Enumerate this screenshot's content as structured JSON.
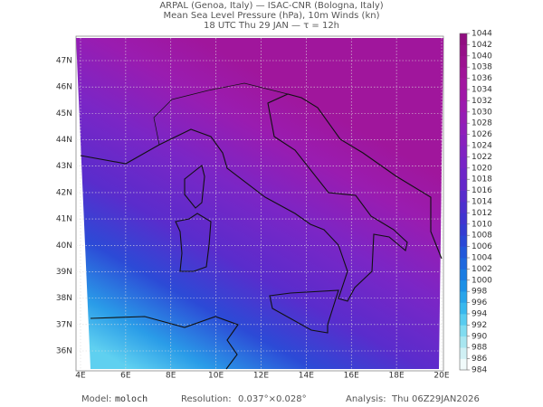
{
  "header": {
    "line1": "ARPAL (Genoa, Italy)  —  ISAC-CNR (Bologna, Italy)",
    "line2": "Mean Sea Level Pressure (hPa), 10m Winds (kn)",
    "line3": "18 UTC Thu 29 JAN  —  τ = 12h"
  },
  "map": {
    "lon_labels": [
      "4E",
      "6E",
      "8E",
      "10E",
      "12E",
      "14E",
      "16E",
      "18E",
      "20E"
    ],
    "lat_labels": [
      "36N",
      "37N",
      "38N",
      "39N",
      "40N",
      "41N",
      "42N",
      "43N",
      "44N",
      "45N",
      "46N",
      "47N"
    ]
  },
  "colorbar": {
    "levels": [
      984,
      986,
      988,
      990,
      992,
      994,
      996,
      998,
      1000,
      1002,
      1004,
      1006,
      1008,
      1010,
      1012,
      1014,
      1016,
      1018,
      1020,
      1022,
      1024,
      1026,
      1028,
      1030,
      1032,
      1034,
      1036,
      1038,
      1040,
      1042,
      1044
    ],
    "colors": [
      "#f0fafa",
      "#d0f0f4",
      "#a8e6f0",
      "#80dcf0",
      "#58ccf0",
      "#38b8ee",
      "#28a4ea",
      "#1c90e6",
      "#1a7ce2",
      "#1e68de",
      "#2258da",
      "#2a48d6",
      "#343cd2",
      "#4034d0",
      "#4c30ce",
      "#582ccc",
      "#6428ca",
      "#6e26c8",
      "#7824c6",
      "#8022c2",
      "#8820be",
      "#901eba",
      "#961cb4",
      "#9c1aae",
      "#a018a8",
      "#a216a0",
      "#a01498",
      "#9c1290",
      "#961088",
      "#900e80"
    ]
  },
  "footer": {
    "model_label": "Model:",
    "model": "moloch",
    "resolution_label": "Resolution:",
    "resolution": "0.037°×0.028°",
    "analysis_label": "Analysis:",
    "analysis": "Thu 06Z29JAN2026"
  }
}
